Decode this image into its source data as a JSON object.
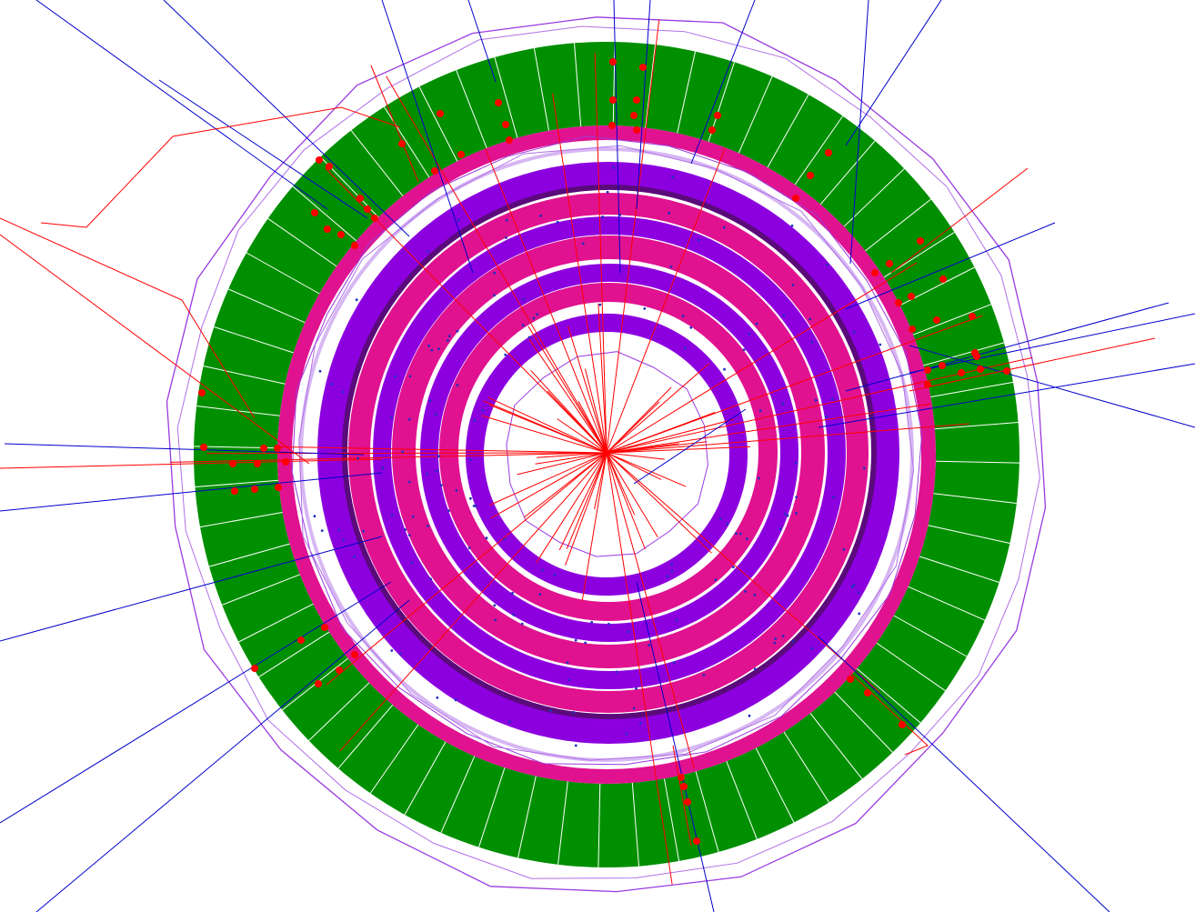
{
  "image": {
    "description_free": true,
    "colors": {
      "background": "#ffffff",
      "calorimeter": "#008f00",
      "calorimeter_segment_line": "#ffffff",
      "magenta_layer": "#e0128f",
      "violet_layer": "#8c00e0",
      "dark_violet": "#5a0a7a",
      "outline_violet": "#9a3be0",
      "outline_light": "#b070e8",
      "track_red": "#ff0000",
      "track_blue": "#0000cc",
      "hit_red": "#ff0000",
      "hit_blue": "#2030c0"
    },
    "calorimeter_segments": 64
  }
}
